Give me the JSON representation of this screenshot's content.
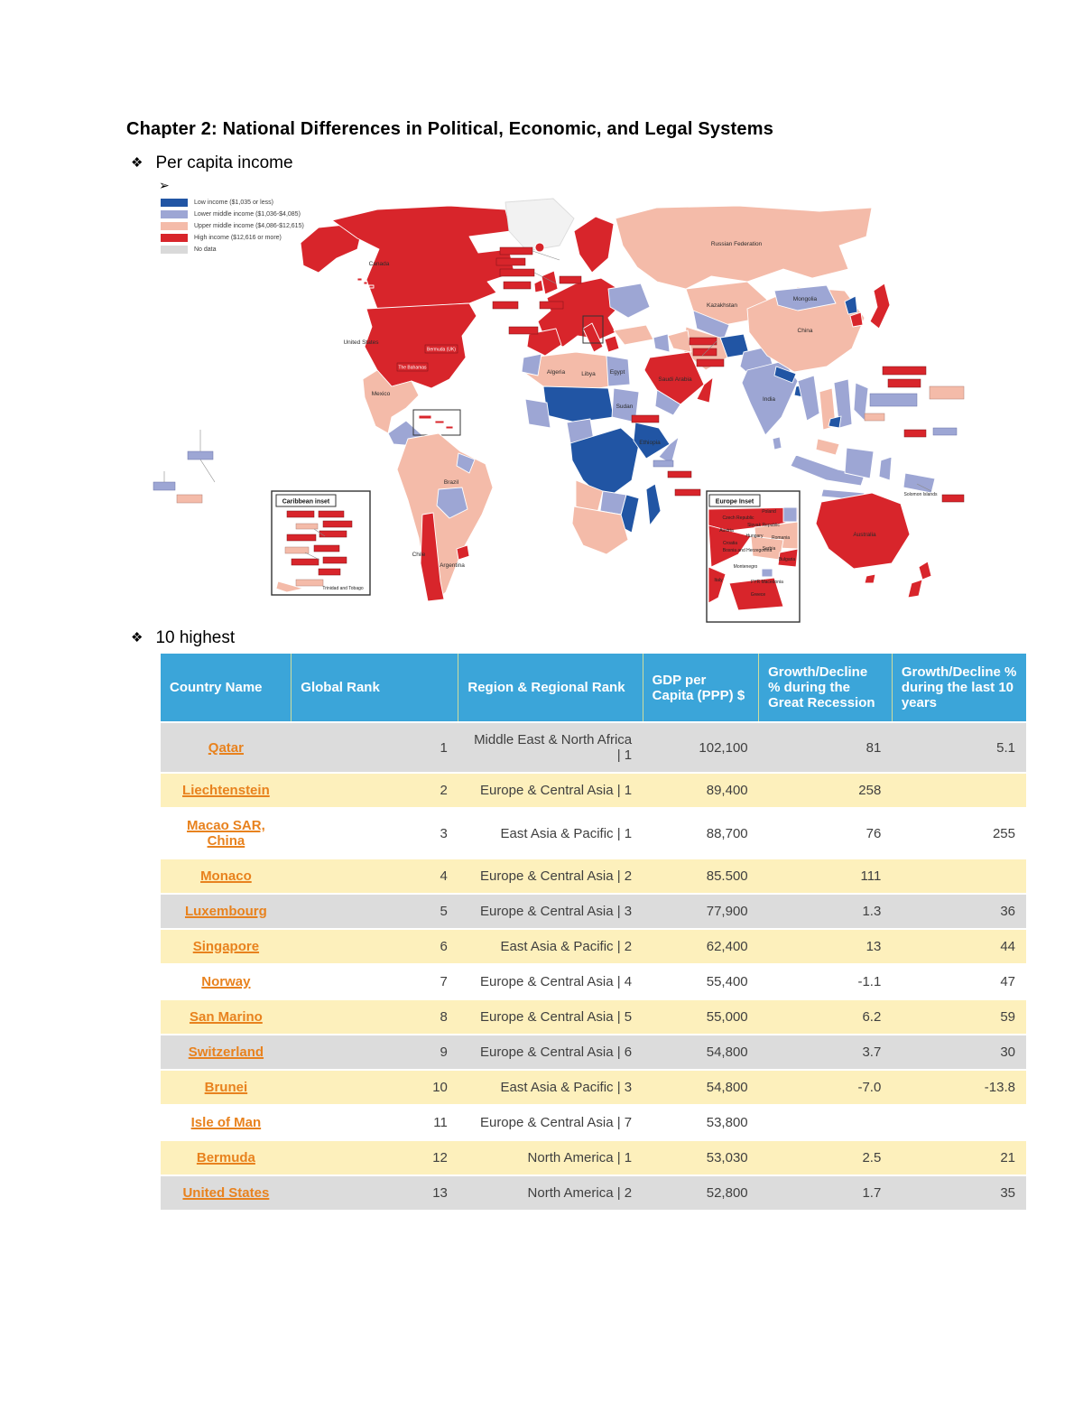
{
  "page": {
    "title": "Chapter 2: National Differences in Political, Economic, and Legal Systems",
    "bullet_marker": "❖",
    "bullet1": "Per capita income",
    "sub_bullet_marker": "➢",
    "bullet2": "10 highest"
  },
  "map": {
    "legend": [
      {
        "label": "Low income ($1,035 or less)",
        "color": "#2155A4"
      },
      {
        "label": "Lower middle income ($1,036-$4,085)",
        "color": "#9DA6D4"
      },
      {
        "label": "Upper middle income ($4,086-$12,615)",
        "color": "#F4BBA9"
      },
      {
        "label": "High income ($12,616 or more)",
        "color": "#D8252B"
      },
      {
        "label": "No data",
        "color": "#D9D9D9"
      }
    ],
    "caribbean_inset_title": "Caribbean inset",
    "europe_inset_title": "Europe Inset",
    "labels": [
      "Canada",
      "United States",
      "Mexico",
      "Brazil",
      "Argentina",
      "Chile",
      "Russian Federation",
      "Kazakhstan",
      "Mongolia",
      "China",
      "India",
      "Australia",
      "Saudi Arabia",
      "Algeria",
      "Libya",
      "Egypt",
      "Sudan",
      "Ethiopia"
    ],
    "boxed_labels": [
      "Bermuda (UK)",
      "The Bahamas",
      "Trinidad and Tobago",
      "Solomon Islands"
    ],
    "europe_inset_labels": [
      "Poland",
      "Czech Republic",
      "Slovak Republic",
      "Austria",
      "Hungary",
      "Romania",
      "Croatia",
      "Bosnia and Herzegovina",
      "Serbia",
      "Montenegro",
      "FYR Macedonia",
      "Bulgaria",
      "Greece",
      "Italy"
    ]
  },
  "table": {
    "columns": [
      "Country Name",
      "Global Rank",
      "Region & Regional Rank",
      "GDP per Capita (PPP) $",
      "Growth/Decline % during the Great Recession",
      "Growth/Decline % during the last 10 years"
    ],
    "rows": [
      {
        "country": "Qatar",
        "rank": "1",
        "region": "Middle East & North Africa | 1",
        "gdp": "102,100",
        "recession": "81",
        "ten_year": "5.1"
      },
      {
        "country": "Liechtenstein",
        "rank": "2",
        "region": "Europe & Central Asia | 1",
        "gdp": "89,400",
        "recession": "258",
        "ten_year": ""
      },
      {
        "country": "Macao SAR, China",
        "rank": "3",
        "region": "East Asia & Pacific | 1",
        "gdp": "88,700",
        "recession": "76",
        "ten_year": "255"
      },
      {
        "country": "Monaco",
        "rank": "4",
        "region": "Europe & Central Asia | 2",
        "gdp": "85.500",
        "recession": "111",
        "ten_year": ""
      },
      {
        "country": "Luxembourg",
        "rank": "5",
        "region": "Europe & Central Asia | 3",
        "gdp": "77,900",
        "recession": "1.3",
        "ten_year": "36"
      },
      {
        "country": "Singapore",
        "rank": "6",
        "region": "East Asia & Pacific | 2",
        "gdp": "62,400",
        "recession": "13",
        "ten_year": "44"
      },
      {
        "country": "Norway",
        "rank": "7",
        "region": "Europe & Central Asia | 4",
        "gdp": "55,400",
        "recession": "-1.1",
        "ten_year": "47"
      },
      {
        "country": "San Marino",
        "rank": "8",
        "region": "Europe & Central Asia | 5",
        "gdp": "55,000",
        "recession": "6.2",
        "ten_year": "59"
      },
      {
        "country": "Switzerland",
        "rank": "9",
        "region": "Europe & Central Asia | 6",
        "gdp": "54,800",
        "recession": "3.7",
        "ten_year": "30"
      },
      {
        "country": "Brunei",
        "rank": "10",
        "region": "East Asia & Pacific | 3",
        "gdp": "54,800",
        "recession": "-7.0",
        "ten_year": "-13.8"
      },
      {
        "country": "Isle of Man",
        "rank": "11",
        "region": "Europe & Central Asia | 7",
        "gdp": "53,800",
        "recession": "",
        "ten_year": ""
      },
      {
        "country": "Bermuda",
        "rank": "12",
        "region": "North America | 1",
        "gdp": "53,030",
        "recession": "2.5",
        "ten_year": "21"
      },
      {
        "country": "United States",
        "rank": "13",
        "region": "North America | 2",
        "gdp": "52,800",
        "recession": "1.7",
        "ten_year": "35"
      }
    ],
    "colors": {
      "header_bg": "#3BA5D9",
      "row_gray": "#DCDCDC",
      "row_yellow": "#FDF0BC",
      "link": "#E8821E"
    }
  }
}
